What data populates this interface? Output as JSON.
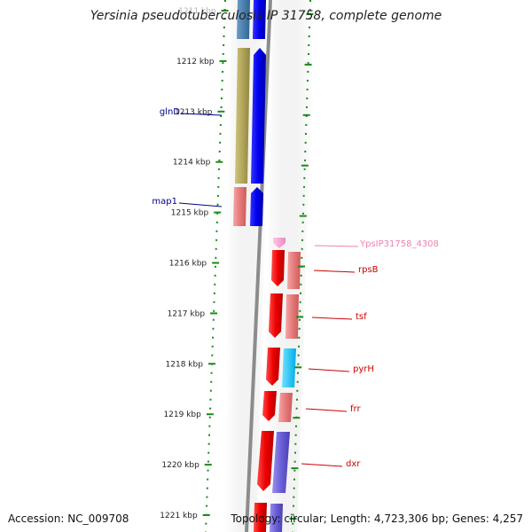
{
  "title": "Yersinia pseudotuberculosis IP 31758, complete genome",
  "footer": {
    "accession_text": "Accession: NC_009708",
    "stats_text": "Topology: circular; Length: 4,723,306 bp; Genes: 4,257"
  },
  "colors": {
    "tick": "#1a8a1a",
    "backbone": "#8c8c8c",
    "left_label": "#00008b",
    "right_label": "#cc0000",
    "pseudo_label": "#ee82b0"
  },
  "ticks": [
    {
      "label": "1211 kbp",
      "faded": true
    },
    {
      "label": "1212 kbp"
    },
    {
      "label": "1213 kbp"
    },
    {
      "label": "1214 kbp"
    },
    {
      "label": "1215 kbp"
    },
    {
      "label": "1216 kbp"
    },
    {
      "label": "1217 kbp"
    },
    {
      "label": "1218 kbp"
    },
    {
      "label": "1219 kbp"
    },
    {
      "label": "1220 kbp"
    },
    {
      "label": "1221 kbp"
    }
  ],
  "gene_labels": [
    {
      "name": "glnD",
      "side": "left"
    },
    {
      "name": "map1",
      "side": "left"
    },
    {
      "name": "YpsIP31758_4308",
      "side": "right",
      "style": "pseudo"
    },
    {
      "name": "rpsB",
      "side": "right"
    },
    {
      "name": "tsf",
      "side": "right"
    },
    {
      "name": "pyrH",
      "side": "right"
    },
    {
      "name": "frr",
      "side": "right"
    },
    {
      "name": "dxr",
      "side": "right"
    }
  ]
}
